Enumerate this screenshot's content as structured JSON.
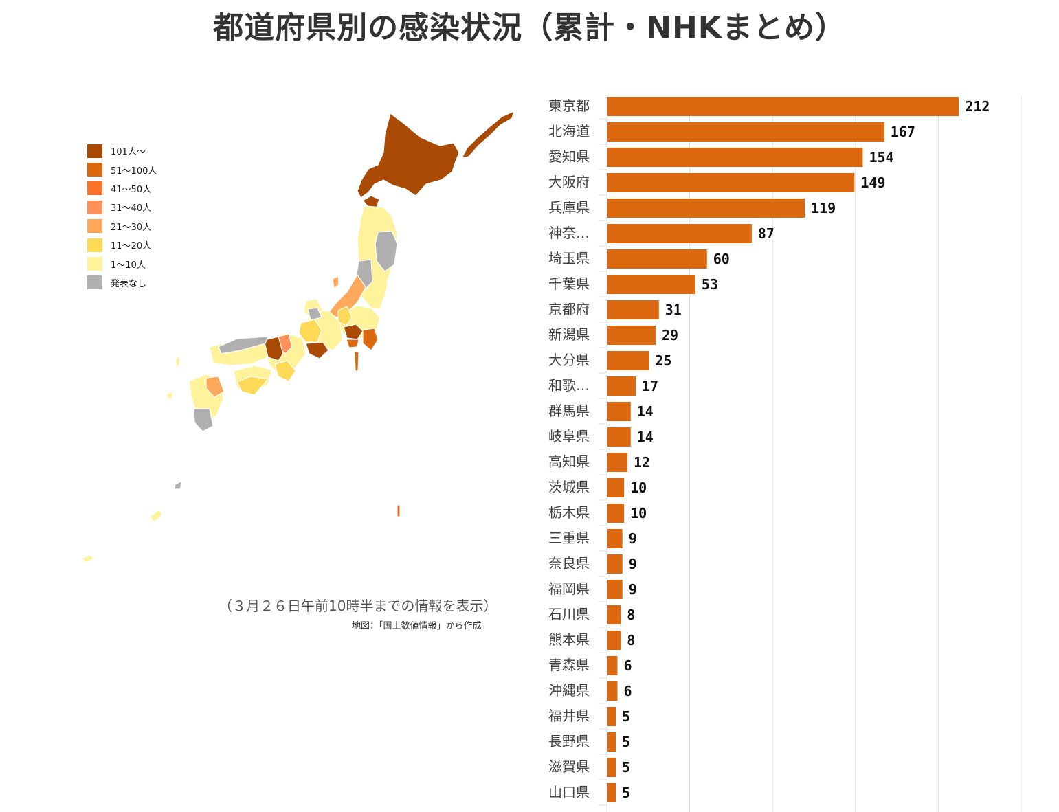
{
  "title": "都道府県別の感染状況（累計・NHKまとめ）",
  "map": {
    "legend": [
      {
        "label": "101人〜",
        "color": "#a94a05"
      },
      {
        "label": "51〜100人",
        "color": "#dc6810"
      },
      {
        "label": "41〜50人",
        "color": "#fd7229"
      },
      {
        "label": "31〜40人",
        "color": "#fd9059"
      },
      {
        "label": "21〜30人",
        "color": "#fda85a"
      },
      {
        "label": "11〜20人",
        "color": "#fdd956"
      },
      {
        "label": "1〜10人",
        "color": "#fef29b"
      },
      {
        "label": "発表なし",
        "color": "#b0b0b0"
      }
    ],
    "note": "（３月２６日午前10時半までの情報を表示）",
    "source": "地図：「国土数値情報」から作成"
  },
  "chart_data": {
    "type": "bar",
    "orientation": "horizontal",
    "categories": [
      "東京都",
      "北海道",
      "愛知県",
      "大阪府",
      "兵庫県",
      "神奈…",
      "埼玉県",
      "千葉県",
      "京都府",
      "新潟県",
      "大分県",
      "和歌…",
      "群馬県",
      "岐阜県",
      "高知県",
      "茨城県",
      "栃木県",
      "三重県",
      "奈良県",
      "福岡県",
      "石川県",
      "熊本県",
      "青森県",
      "沖縄県",
      "福井県",
      "長野県",
      "滋賀県",
      "山口県"
    ],
    "values": [
      212,
      167,
      154,
      149,
      119,
      87,
      60,
      53,
      31,
      29,
      25,
      17,
      14,
      14,
      12,
      10,
      10,
      9,
      9,
      9,
      8,
      8,
      6,
      6,
      5,
      5,
      5,
      5
    ],
    "xlim": [
      0,
      250
    ],
    "grid": true,
    "bar_color": "#dc6810"
  }
}
